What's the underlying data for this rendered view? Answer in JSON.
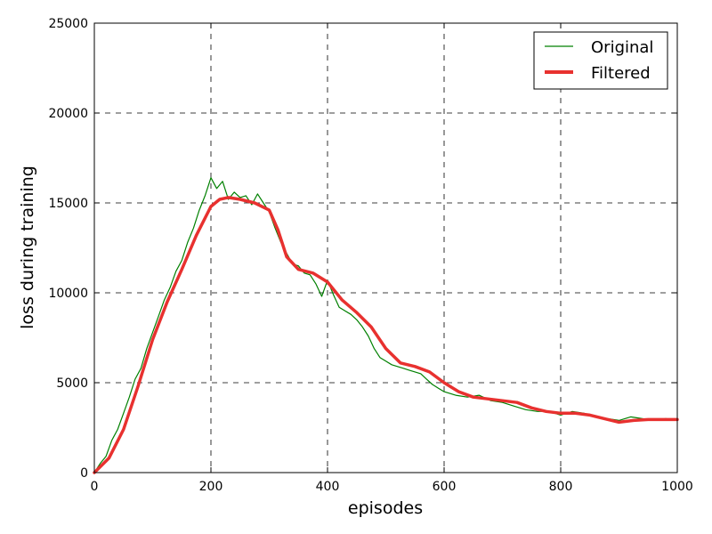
{
  "chart_data": {
    "type": "line",
    "title": "",
    "xlabel": "episodes",
    "ylabel": "loss during training",
    "xlim": [
      0,
      1000
    ],
    "ylim": [
      0,
      25000
    ],
    "xticks": [
      0,
      200,
      400,
      600,
      800,
      1000
    ],
    "yticks": [
      0,
      5000,
      10000,
      15000,
      20000,
      25000
    ],
    "grid": true,
    "legend_position": "top-right",
    "series": [
      {
        "name": "Original",
        "color": "#008000",
        "style": "thin",
        "x": [
          0,
          10,
          20,
          30,
          40,
          50,
          60,
          70,
          80,
          90,
          100,
          110,
          120,
          130,
          140,
          150,
          160,
          170,
          180,
          190,
          200,
          210,
          220,
          230,
          240,
          250,
          260,
          270,
          280,
          290,
          300,
          310,
          320,
          330,
          340,
          350,
          360,
          370,
          380,
          390,
          400,
          410,
          420,
          430,
          440,
          450,
          460,
          470,
          480,
          490,
          500,
          510,
          520,
          530,
          540,
          550,
          560,
          570,
          580,
          590,
          600,
          620,
          640,
          660,
          680,
          700,
          720,
          740,
          760,
          780,
          800,
          820,
          840,
          860,
          880,
          900,
          920,
          940,
          960,
          980,
          1000
        ],
        "y": [
          0,
          500,
          900,
          1800,
          2400,
          3300,
          4200,
          5200,
          5800,
          6900,
          7800,
          8700,
          9600,
          10300,
          11200,
          11800,
          12800,
          13600,
          14600,
          15400,
          16400,
          15800,
          16200,
          15200,
          15600,
          15300,
          15400,
          14900,
          15500,
          15000,
          14500,
          13600,
          12800,
          12200,
          11600,
          11500,
          11100,
          11000,
          10500,
          9800,
          10700,
          9900,
          9200,
          9000,
          8800,
          8500,
          8100,
          7600,
          6900,
          6400,
          6200,
          6000,
          5900,
          5800,
          5700,
          5600,
          5500,
          5200,
          4900,
          4700,
          4500,
          4300,
          4200,
          4300,
          4000,
          3900,
          3700,
          3500,
          3400,
          3400,
          3200,
          3400,
          3300,
          3100,
          3000,
          2900,
          3100,
          3000,
          2900,
          3000,
          2900
        ]
      },
      {
        "name": "Filtered",
        "color": "#e8312f",
        "style": "thick",
        "x": [
          0,
          25,
          50,
          75,
          100,
          125,
          150,
          175,
          200,
          215,
          230,
          250,
          275,
          300,
          315,
          330,
          350,
          375,
          400,
          425,
          450,
          475,
          500,
          525,
          550,
          575,
          600,
          625,
          650,
          675,
          700,
          725,
          750,
          775,
          800,
          825,
          850,
          875,
          900,
          925,
          950,
          975,
          1000
        ],
        "y": [
          0,
          800,
          2400,
          4800,
          7400,
          9500,
          11300,
          13200,
          14800,
          15200,
          15300,
          15200,
          15000,
          14600,
          13500,
          12000,
          11300,
          11100,
          10600,
          9600,
          8900,
          8100,
          6900,
          6100,
          5900,
          5600,
          5000,
          4500,
          4200,
          4100,
          4000,
          3900,
          3600,
          3400,
          3300,
          3300,
          3200,
          3000,
          2800,
          2900,
          2950,
          2950,
          2950
        ]
      }
    ]
  }
}
